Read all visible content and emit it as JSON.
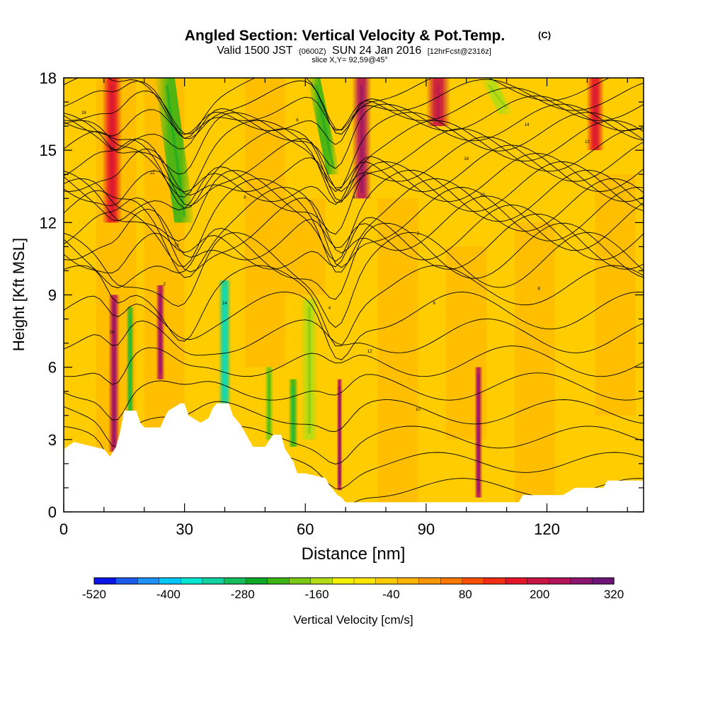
{
  "chart_data": {
    "type": "heatmap",
    "title": "Angled Section: Vertical Velocity & Pot.Temp.",
    "title_mark": "(C)",
    "subtitle": {
      "prefix": "Valid 1500 JST",
      "zulu": "(0600Z)",
      "date": "SUN 24 Jan 2016",
      "forecast": "[12hrFcst@2316z]"
    },
    "slice_label": "slice X,Y= 92,59@45°",
    "xlabel": "Distance [nm]",
    "ylabel": "Height [Kft MSL]",
    "xlim": [
      0,
      144
    ],
    "ylim": [
      0,
      18
    ],
    "xticks": [
      0,
      30,
      60,
      90,
      120
    ],
    "yticks": [
      0,
      3,
      6,
      9,
      12,
      15,
      18
    ],
    "colorbar": {
      "label": "Vertical Velocity [cm/s]",
      "ticks": [
        "-520",
        "-400",
        "-280",
        "-160",
        "-40",
        "80",
        "200",
        "320"
      ],
      "range": [
        -520,
        320
      ],
      "colors": [
        "#0a14e6",
        "#1a5cf0",
        "#1e90ff",
        "#00c8ff",
        "#00e6d2",
        "#10d2a0",
        "#14be5a",
        "#10a828",
        "#3cb414",
        "#78c814",
        "#b4dc14",
        "#f0f000",
        "#ffe600",
        "#ffcc00",
        "#ffb400",
        "#ff9600",
        "#ff7800",
        "#ff5000",
        "#f52d14",
        "#e61428",
        "#c81440",
        "#b4145a",
        "#8c146e",
        "#6e1478"
      ]
    },
    "terrain_kft": [
      [
        0,
        2.6
      ],
      [
        2.5,
        2.9
      ],
      [
        10,
        2.6
      ],
      [
        11.5,
        2.3
      ],
      [
        13,
        2.7
      ],
      [
        14,
        3.3
      ],
      [
        15,
        4.2
      ],
      [
        18,
        4.2
      ],
      [
        19,
        3.7
      ],
      [
        20,
        3.5
      ],
      [
        24,
        3.5
      ],
      [
        25,
        3.9
      ],
      [
        26,
        4.2
      ],
      [
        29,
        4.5
      ],
      [
        30,
        4.5
      ],
      [
        31,
        4.0
      ],
      [
        34,
        3.7
      ],
      [
        36,
        3.9
      ],
      [
        37,
        4.3
      ],
      [
        38,
        4.5
      ],
      [
        41,
        4.5
      ],
      [
        42,
        4.0
      ],
      [
        44,
        3.6
      ],
      [
        46,
        3.0
      ],
      [
        47,
        2.7
      ],
      [
        50,
        2.7
      ],
      [
        52,
        3.2
      ],
      [
        54,
        3.2
      ],
      [
        55,
        2.6
      ],
      [
        57,
        2.1
      ],
      [
        58,
        1.6
      ],
      [
        60,
        1.6
      ],
      [
        65,
        1.4
      ],
      [
        66,
        1.1
      ],
      [
        67,
        0.9
      ],
      [
        68,
        0.7
      ],
      [
        69,
        0.6
      ],
      [
        70,
        0.4
      ],
      [
        113,
        0.4
      ],
      [
        114,
        0.7
      ],
      [
        124,
        0.7
      ],
      [
        127,
        1.0
      ],
      [
        134,
        1.0
      ],
      [
        135,
        1.3
      ],
      [
        144,
        1.3
      ]
    ],
    "velocity_features": [
      {
        "x": 12.5,
        "y0": 2.5,
        "y1": 9,
        "w": 1.4,
        "value": 230
      },
      {
        "x": 16.5,
        "y0": 4,
        "y1": 8.5,
        "w": 1.0,
        "value": -240
      },
      {
        "x": 24,
        "y0": 5.5,
        "y1": 9.4,
        "w": 1.1,
        "value": 230
      },
      {
        "x": 30,
        "y0": 12,
        "y1": 18,
        "w": 2.5,
        "value": -230
      },
      {
        "x": 40,
        "y0": 4.5,
        "y1": 9.6,
        "w": 1.6,
        "value": -330
      },
      {
        "x": 51,
        "y0": 3,
        "y1": 6,
        "w": 1.1,
        "value": -200
      },
      {
        "x": 57,
        "y0": 2.7,
        "y1": 5.5,
        "w": 1.2,
        "value": -240
      },
      {
        "x": 61,
        "y0": 3,
        "y1": 8.8,
        "w": 2.2,
        "value": -160
      },
      {
        "x": 68.5,
        "y0": 0.9,
        "y1": 5.5,
        "w": 0.7,
        "value": 240
      },
      {
        "x": 67,
        "y0": 14,
        "y1": 18,
        "w": 1.6,
        "value": -220
      },
      {
        "x": 74,
        "y0": 13,
        "y1": 18,
        "w": 2.4,
        "value": 240
      },
      {
        "x": 103,
        "y0": 0.6,
        "y1": 6,
        "w": 1.0,
        "value": 220
      },
      {
        "x": 93,
        "y0": 16,
        "y1": 18,
        "w": 3.0,
        "value": 200
      },
      {
        "x": 12,
        "y0": 12,
        "y1": 18,
        "w": 2.5,
        "value": 170
      },
      {
        "x": 110,
        "y0": 16.5,
        "y1": 18,
        "w": 1.8,
        "value": -160
      },
      {
        "x": 132,
        "y0": 15,
        "y1": 18,
        "w": 2.2,
        "value": 170
      }
    ],
    "isentrope_labels": [
      "16",
      "14",
      "12",
      "10",
      "8",
      "6",
      "4",
      "2"
    ]
  }
}
